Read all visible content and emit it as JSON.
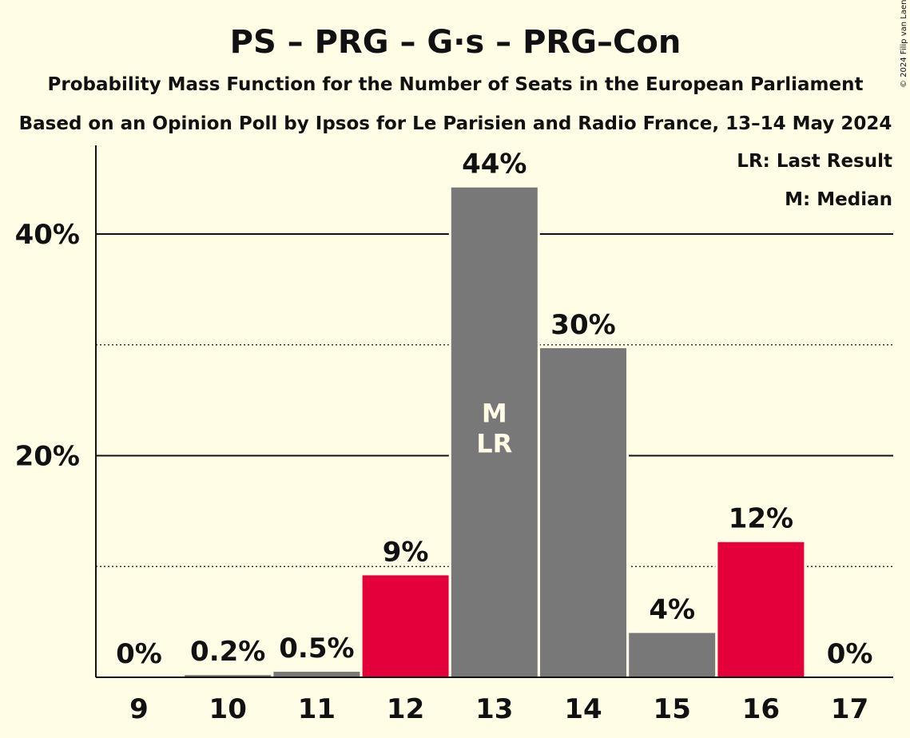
{
  "chart_data": {
    "type": "bar",
    "title": "PS – PRG – G·s – PRG–Con",
    "subtitle": "Probability Mass Function for the Number of Seats in the European Parliament",
    "subtitle2": "Based on an Opinion Poll by Ipsos for Le Parisien and Radio France, 13–14 May 2024",
    "copyright": "© 2024 Filip van Laenen",
    "legend": {
      "position": "top-right",
      "last_result": "LR: Last Result",
      "median": "M: Median"
    },
    "categories": [
      "9",
      "10",
      "11",
      "12",
      "13",
      "14",
      "15",
      "16",
      "17"
    ],
    "values": [
      0,
      0.2,
      0.5,
      9.2,
      44.2,
      29.7,
      4.0,
      12.2,
      0
    ],
    "value_labels": [
      "0%",
      "0.2%",
      "0.5%",
      "9%",
      "44%",
      "30%",
      "4%",
      "12%",
      "0%"
    ],
    "bar_colors": [
      "#787878",
      "#787878",
      "#787878",
      "#E4003B",
      "#787878",
      "#787878",
      "#787878",
      "#E4003B",
      "#787878"
    ],
    "bar_markers": [
      "",
      "",
      "",
      "",
      "M\nLR",
      "",
      "",
      "",
      ""
    ],
    "ylim": [
      0,
      48
    ],
    "y_ticks": [
      20,
      40
    ],
    "y_tick_labels": [
      "20%",
      "40%"
    ],
    "dotted_gridlines": [
      10,
      30
    ],
    "colors": {
      "background": "#FFFDE5",
      "grey": "#787878",
      "red": "#E4003B"
    }
  }
}
